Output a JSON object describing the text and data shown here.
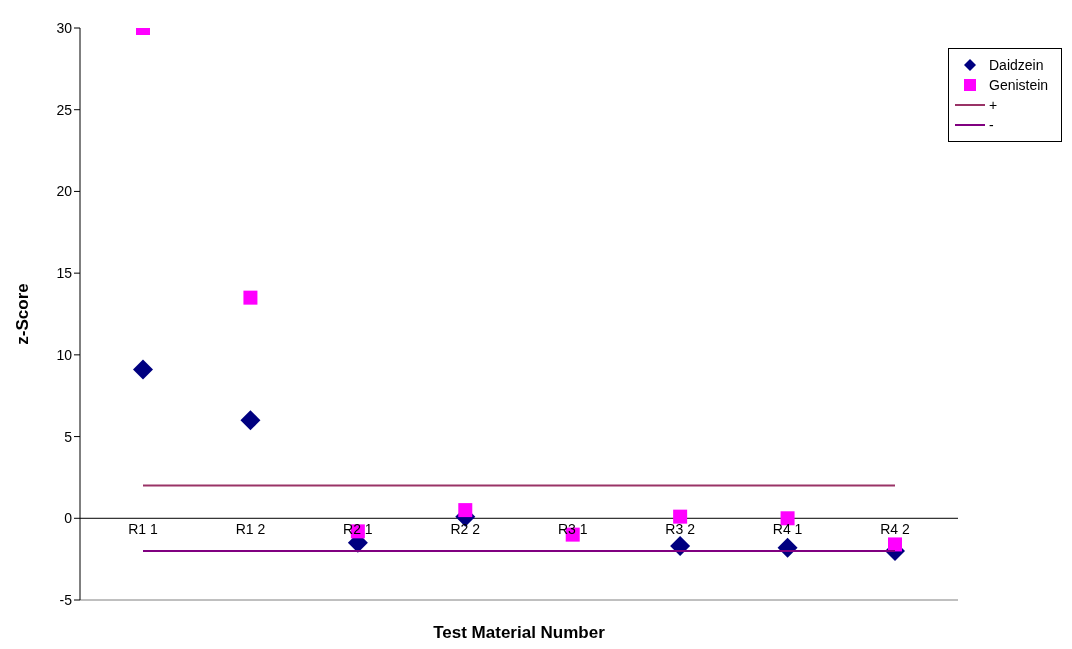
{
  "chart_data": {
    "type": "scatter",
    "xlabel": "Test Material Number",
    "ylabel": "z-Score",
    "categories": [
      "R1 1",
      "R1 2",
      "R2 1",
      "R2 2",
      "R3 1",
      "R3 2",
      "R4 1",
      "R4 2"
    ],
    "ylim": [
      -5,
      30
    ],
    "yticks": [
      -5,
      0,
      5,
      10,
      15,
      20,
      25,
      30
    ],
    "grid": false,
    "legend": "top right",
    "series": [
      {
        "name": "Daidzein",
        "color": "#000080",
        "marker": "diamond",
        "values": [
          9.1,
          6.0,
          -1.5,
          0.1,
          null,
          -1.7,
          -1.8,
          -2.0
        ]
      },
      {
        "name": "Genistein",
        "color": "#ff00ff",
        "marker": "square",
        "values": [
          30,
          13.5,
          -0.8,
          0.5,
          -1.0,
          0.1,
          0.0,
          -1.6
        ]
      },
      {
        "name": "+",
        "type": "line",
        "color": "#993366",
        "marker": "none",
        "values": [
          2,
          2,
          2,
          2,
          2,
          2,
          2,
          2
        ]
      },
      {
        "name": "-",
        "type": "line",
        "color": "#800080",
        "marker": "none",
        "values": [
          -2,
          -2,
          -2,
          -2,
          -2,
          -2,
          -2,
          -2
        ]
      }
    ]
  }
}
